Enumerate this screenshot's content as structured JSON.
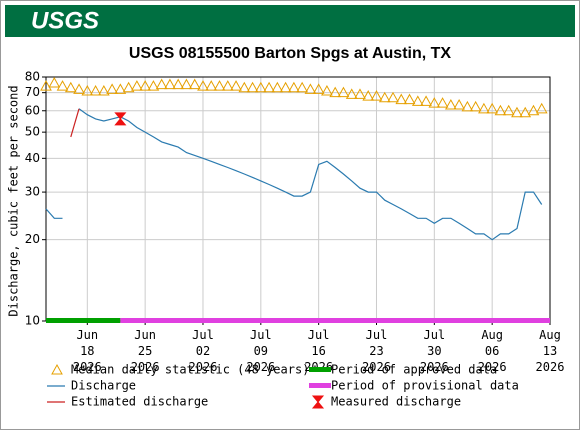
{
  "logo": "USGS",
  "chart_data": {
    "type": "line",
    "title": "USGS 08155500 Barton Spgs at Austin, TX",
    "y_label": "Discharge, cubic feet per second",
    "log_scale": true,
    "grid": true,
    "x": [
      "2026-06-13",
      "2026-06-14",
      "2026-06-15",
      "2026-06-16",
      "2026-06-17",
      "2026-06-18",
      "2026-06-19",
      "2026-06-20",
      "2026-06-21",
      "2026-06-22",
      "2026-06-23",
      "2026-06-24",
      "2026-06-25",
      "2026-06-26",
      "2026-06-27",
      "2026-06-28",
      "2026-06-29",
      "2026-06-30",
      "2026-07-01",
      "2026-07-02",
      "2026-07-03",
      "2026-07-04",
      "2026-07-05",
      "2026-07-06",
      "2026-07-07",
      "2026-07-08",
      "2026-07-09",
      "2026-07-10",
      "2026-07-11",
      "2026-07-12",
      "2026-07-13",
      "2026-07-14",
      "2026-07-15",
      "2026-07-16",
      "2026-07-17",
      "2026-07-18",
      "2026-07-19",
      "2026-07-20",
      "2026-07-21",
      "2026-07-22",
      "2026-07-23",
      "2026-07-24",
      "2026-07-25",
      "2026-07-26",
      "2026-07-27",
      "2026-07-28",
      "2026-07-29",
      "2026-07-30",
      "2026-07-31",
      "2026-08-01",
      "2026-08-02",
      "2026-08-03",
      "2026-08-04",
      "2026-08-05",
      "2026-08-06",
      "2026-08-07",
      "2026-08-08",
      "2026-08-09",
      "2026-08-10",
      "2026-08-11",
      "2026-08-12"
    ],
    "series": [
      {
        "name": "Median daily statistic (48 years)",
        "color": "#e6a000",
        "marker": "triangle",
        "values": [
          74,
          76,
          74,
          73,
          72,
          71,
          71,
          71,
          72,
          72,
          73,
          74,
          74,
          74,
          75,
          75,
          75,
          75,
          75,
          74,
          74,
          74,
          74,
          74,
          73,
          73,
          73,
          73,
          73,
          73,
          73,
          73,
          72,
          72,
          71,
          70,
          70,
          69,
          69,
          68,
          68,
          67,
          67,
          66,
          66,
          65,
          65,
          64,
          64,
          63,
          63,
          62,
          62,
          61,
          61,
          60,
          60,
          59,
          59,
          60,
          61
        ]
      },
      {
        "name": "Discharge",
        "color": "#2b7bb0",
        "values": [
          26,
          24,
          24,
          null,
          61,
          58,
          56,
          55,
          56,
          57,
          55,
          52,
          50,
          48,
          46,
          45,
          44,
          42,
          41,
          40,
          39,
          38,
          37,
          36,
          35,
          34,
          33,
          32,
          31,
          30,
          29,
          29,
          30,
          38,
          39,
          37,
          35,
          33,
          31,
          30,
          30,
          28,
          27,
          26,
          25,
          24,
          24,
          23,
          24,
          24,
          23,
          22,
          21,
          21,
          20,
          21,
          21,
          22,
          30,
          30,
          27
        ]
      },
      {
        "name": "Estimated discharge",
        "color": "#cc2222",
        "x": [
          "2026-06-16",
          "2026-06-17"
        ],
        "values": [
          48,
          61
        ]
      },
      {
        "name": "Measured discharge",
        "color": "#ee1111",
        "marker": "bowtie",
        "x": [
          "2026-06-22"
        ],
        "values": [
          56
        ]
      }
    ],
    "periods": [
      {
        "name": "Period of approved data",
        "color": "#00a000",
        "start": "2026-06-13",
        "end": "2026-06-22"
      },
      {
        "name": "Period of provisional data",
        "color": "#e040e0",
        "start": "2026-06-22",
        "end": "2026-08-13"
      }
    ],
    "xlim": [
      "2026-06-13",
      "2026-08-13"
    ],
    "xticks": [
      {
        "value": "2026-06-18",
        "label": "Jun 18 2026"
      },
      {
        "value": "2026-06-25",
        "label": "Jun 25 2026"
      },
      {
        "value": "2026-07-02",
        "label": "Jul 02 2026"
      },
      {
        "value": "2026-07-09",
        "label": "Jul 09 2026"
      },
      {
        "value": "2026-07-16",
        "label": "Jul 16 2026"
      },
      {
        "value": "2026-07-23",
        "label": "Jul 23 2026"
      },
      {
        "value": "2026-07-30",
        "label": "Jul 30 2026"
      },
      {
        "value": "2026-08-06",
        "label": "Aug 06 2026"
      },
      {
        "value": "2026-08-13",
        "label": "Aug 13 2026"
      }
    ],
    "ylim": [
      10,
      80
    ],
    "yticks": [
      10,
      20,
      30,
      40,
      50,
      60,
      70,
      80
    ]
  }
}
